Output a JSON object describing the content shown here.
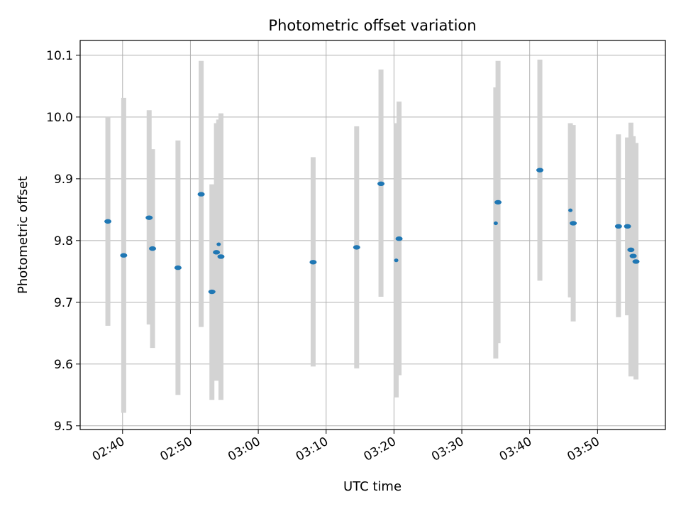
{
  "chart_data": {
    "type": "scatter",
    "title": "Photometric offset variation",
    "xlabel": "UTC time",
    "ylabel": "Photometric offset",
    "grid": true,
    "ylim": [
      9.494,
      10.124
    ],
    "xlim": [
      "02:33:45",
      "04:00:00"
    ],
    "yticks": [
      "9.5",
      "9.6",
      "9.7",
      "9.8",
      "9.9",
      "10.0",
      "10.1"
    ],
    "xticks": [
      "02:40",
      "02:50",
      "03:00",
      "03:10",
      "03:20",
      "03:30",
      "03:40",
      "03:50"
    ],
    "colors": {
      "marker": "#1f77b4",
      "errorbar": "#d3d3d3",
      "grid": "#b0b0b0"
    },
    "points": [
      {
        "x": "02:37:50",
        "y": 9.831,
        "low": 9.662,
        "high": 10.0,
        "marker": "large"
      },
      {
        "x": "02:40:10",
        "y": 9.776,
        "low": 9.521,
        "high": 10.031,
        "marker": "large"
      },
      {
        "x": "02:43:55",
        "y": 9.837,
        "low": 9.664,
        "high": 10.011,
        "marker": "large"
      },
      {
        "x": "02:44:25",
        "y": 9.787,
        "low": 9.626,
        "high": 9.948,
        "marker": "large"
      },
      {
        "x": "02:48:10",
        "y": 9.756,
        "low": 9.55,
        "high": 9.962,
        "marker": "large"
      },
      {
        "x": "02:51:35",
        "y": 9.875,
        "low": 9.66,
        "high": 10.091,
        "marker": "large"
      },
      {
        "x": "02:53:10",
        "y": 9.717,
        "low": 9.542,
        "high": 9.891,
        "marker": "large"
      },
      {
        "x": "02:53:50",
        "y": 9.781,
        "low": 9.573,
        "high": 9.99,
        "marker": "large"
      },
      {
        "x": "02:54:10",
        "y": 9.794,
        "low": 9.593,
        "high": 9.996,
        "marker": "small"
      },
      {
        "x": "02:54:30",
        "y": 9.774,
        "low": 9.542,
        "high": 10.006,
        "marker": "large"
      },
      {
        "x": "03:08:05",
        "y": 9.765,
        "low": 9.596,
        "high": 9.935,
        "marker": "large"
      },
      {
        "x": "03:14:30",
        "y": 9.789,
        "low": 9.593,
        "high": 9.985,
        "marker": "large"
      },
      {
        "x": "03:18:05",
        "y": 9.892,
        "low": 9.709,
        "high": 10.077,
        "marker": "large"
      },
      {
        "x": "03:20:20",
        "y": 9.768,
        "low": 9.546,
        "high": 9.99,
        "marker": "small"
      },
      {
        "x": "03:20:45",
        "y": 9.803,
        "low": 9.582,
        "high": 10.025,
        "marker": "large"
      },
      {
        "x": "03:35:00",
        "y": 9.828,
        "low": 9.609,
        "high": 10.048,
        "marker": "small"
      },
      {
        "x": "03:35:20",
        "y": 9.862,
        "low": 9.634,
        "high": 10.091,
        "marker": "large"
      },
      {
        "x": "03:41:30",
        "y": 9.914,
        "low": 9.735,
        "high": 10.093,
        "marker": "large"
      },
      {
        "x": "03:46:00",
        "y": 9.849,
        "low": 9.708,
        "high": 9.99,
        "marker": "small"
      },
      {
        "x": "03:46:25",
        "y": 9.828,
        "low": 9.669,
        "high": 9.987,
        "marker": "large"
      },
      {
        "x": "03:53:05",
        "y": 9.823,
        "low": 9.676,
        "high": 9.972,
        "marker": "large"
      },
      {
        "x": "03:54:25",
        "y": 9.823,
        "low": 9.679,
        "high": 9.967,
        "marker": "large"
      },
      {
        "x": "03:54:55",
        "y": 9.785,
        "low": 9.58,
        "high": 9.991,
        "marker": "large"
      },
      {
        "x": "03:55:15",
        "y": 9.775,
        "low": 9.582,
        "high": 9.969,
        "marker": "large"
      },
      {
        "x": "03:55:40",
        "y": 9.766,
        "low": 9.575,
        "high": 9.958,
        "marker": "large"
      }
    ]
  }
}
